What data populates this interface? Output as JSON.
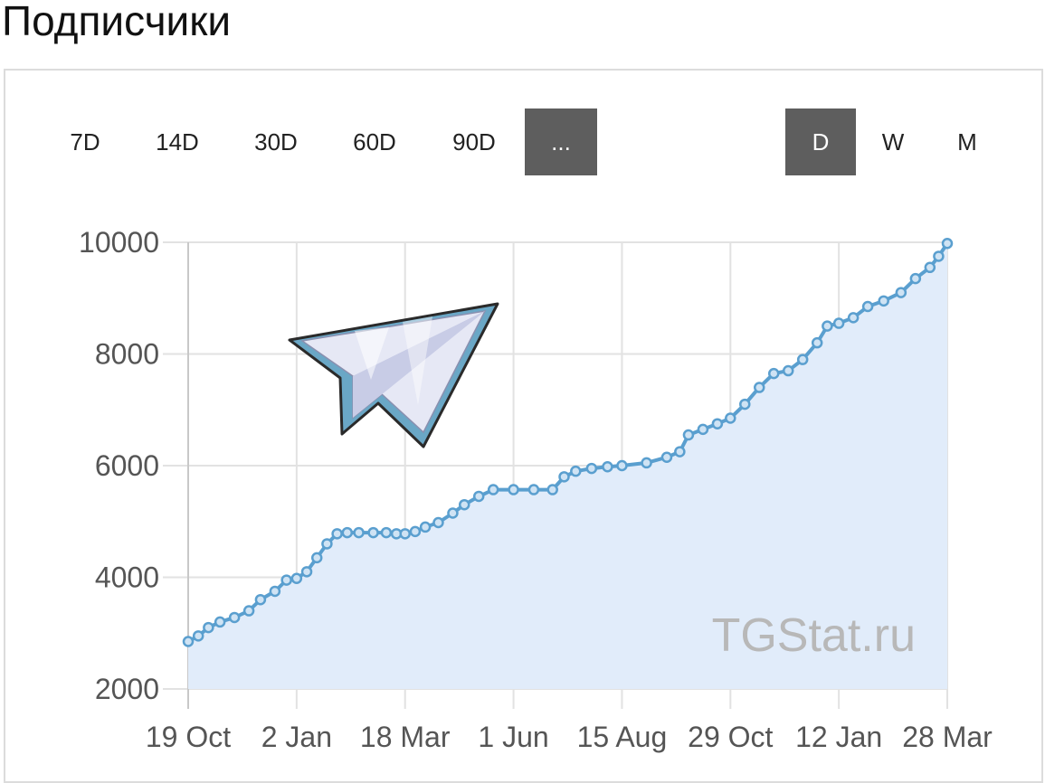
{
  "header": {
    "title": "Подписчики"
  },
  "range_buttons": [
    {
      "label": "7D",
      "active": false
    },
    {
      "label": "14D",
      "active": false
    },
    {
      "label": "30D",
      "active": false
    },
    {
      "label": "60D",
      "active": false
    },
    {
      "label": "90D",
      "active": false
    },
    {
      "label": "...",
      "active": true
    }
  ],
  "granularity_buttons": [
    {
      "label": "D",
      "active": true
    },
    {
      "label": "W",
      "active": false
    },
    {
      "label": "M",
      "active": false
    }
  ],
  "watermark": "TGStat.ru",
  "logo_icon": "telegram-paper-plane-icon",
  "colors": {
    "line": "#5a9fcf",
    "point_fill": "#cfe3f4",
    "area": "#e1ecfa",
    "grid": "#e2e2e2",
    "active_button": "#5e5e5e"
  },
  "chart_data": {
    "type": "area",
    "x_ticks": [
      "19 Oct",
      "2 Jan",
      "18 Mar",
      "1 Jun",
      "15 Aug",
      "29 Oct",
      "12 Jan",
      "28 Mar"
    ],
    "y_ticks": [
      "2000",
      "4000",
      "6000",
      "8000",
      "10000"
    ],
    "ylim": [
      2000,
      10000
    ],
    "grid": true,
    "series": [
      {
        "points": [
          [
            "19 Oct",
            2850
          ],
          [
            "26 Oct",
            2950
          ],
          [
            "2 Nov",
            3100
          ],
          [
            "10 Nov",
            3200
          ],
          [
            "20 Nov",
            3280
          ],
          [
            "30 Nov",
            3400
          ],
          [
            "8 Dec",
            3600
          ],
          [
            "18 Dec",
            3750
          ],
          [
            "26 Dec",
            3950
          ],
          [
            "2 Jan",
            3980
          ],
          [
            "9 Jan",
            4100
          ],
          [
            "16 Jan",
            4350
          ],
          [
            "23 Jan",
            4600
          ],
          [
            "30 Jan",
            4780
          ],
          [
            "6 Feb",
            4800
          ],
          [
            "14 Feb",
            4800
          ],
          [
            "24 Feb",
            4800
          ],
          [
            "5 Mar",
            4800
          ],
          [
            "12 Mar",
            4780
          ],
          [
            "18 Mar",
            4780
          ],
          [
            "25 Mar",
            4820
          ],
          [
            "1 Apr",
            4900
          ],
          [
            "10 Apr",
            4980
          ],
          [
            "20 Apr",
            5150
          ],
          [
            "28 Apr",
            5300
          ],
          [
            "8 May",
            5450
          ],
          [
            "18 May",
            5570
          ],
          [
            "1 Jun",
            5570
          ],
          [
            "15 Jun",
            5570
          ],
          [
            "28 Jun",
            5570
          ],
          [
            "6 Jul",
            5800
          ],
          [
            "14 Jul",
            5900
          ],
          [
            "25 Jul",
            5950
          ],
          [
            "5 Aug",
            5980
          ],
          [
            "15 Aug",
            6000
          ],
          [
            "1 Sep",
            6050
          ],
          [
            "15 Sep",
            6150
          ],
          [
            "24 Sep",
            6250
          ],
          [
            "30 Sep",
            6550
          ],
          [
            "10 Oct",
            6650
          ],
          [
            "20 Oct",
            6750
          ],
          [
            "29 Oct",
            6850
          ],
          [
            "8 Nov",
            7100
          ],
          [
            "18 Nov",
            7400
          ],
          [
            "28 Nov",
            7650
          ],
          [
            "8 Dec",
            7700
          ],
          [
            "18 Dec",
            7900
          ],
          [
            "28 Dec",
            8200
          ],
          [
            "4 Jan",
            8500
          ],
          [
            "12 Jan",
            8550
          ],
          [
            "22 Jan",
            8650
          ],
          [
            "1 Feb",
            8850
          ],
          [
            "12 Feb",
            8950
          ],
          [
            "24 Feb",
            9100
          ],
          [
            "6 Mar",
            9350
          ],
          [
            "16 Mar",
            9550
          ],
          [
            "22 Mar",
            9750
          ],
          [
            "28 Mar",
            9980
          ]
        ]
      }
    ]
  }
}
